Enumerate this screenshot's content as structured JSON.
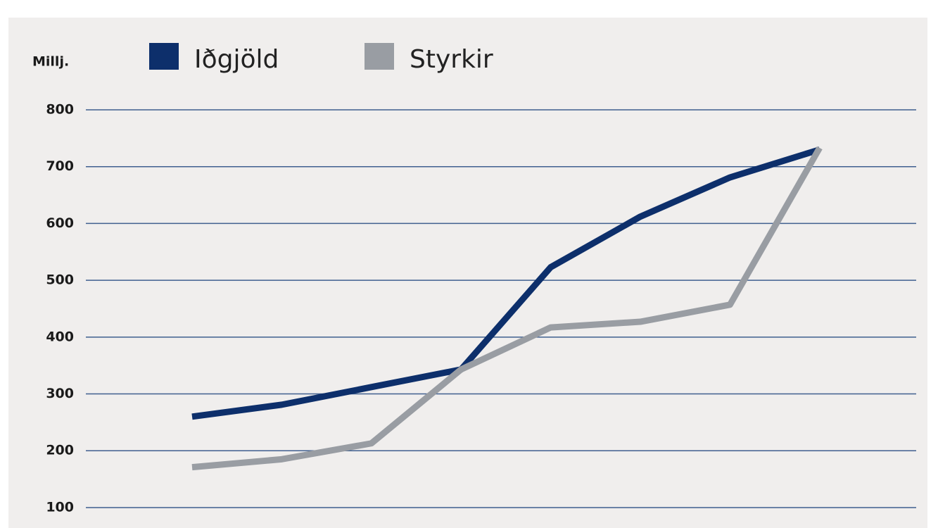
{
  "chart_data": {
    "type": "line",
    "y_label": "Millj.",
    "categories": [
      null,
      null,
      null,
      null,
      null,
      null,
      null,
      null
    ],
    "series": [
      {
        "name": "Iðgjöld",
        "color": "#0d2f6b",
        "values": [
          260,
          281,
          312,
          343,
          523,
          612,
          681,
          730
        ]
      },
      {
        "name": "Styrkir",
        "color": "#999da3",
        "values": [
          171,
          185,
          213,
          343,
          417,
          427,
          457,
          733
        ]
      }
    ],
    "ylim": [
      64,
      800
    ],
    "yticks": [
      100,
      200,
      300,
      400,
      500,
      600,
      700,
      800
    ],
    "grid": true
  }
}
